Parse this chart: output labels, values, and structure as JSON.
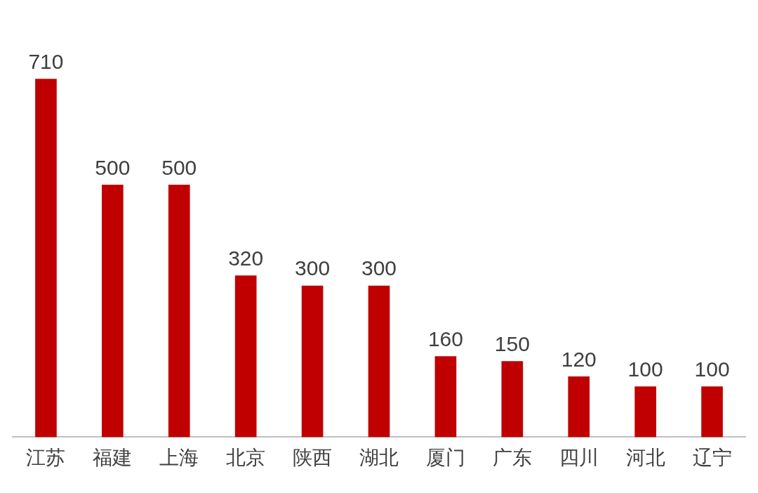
{
  "chart_data": {
    "type": "bar",
    "categories": [
      "江苏",
      "福建",
      "上海",
      "北京",
      "陕西",
      "湖北",
      "厦门",
      "广东",
      "四川",
      "河北",
      "辽宁"
    ],
    "values": [
      710,
      500,
      500,
      320,
      300,
      300,
      160,
      150,
      120,
      100,
      100
    ],
    "color": "#c00000",
    "data_labels": true
  }
}
